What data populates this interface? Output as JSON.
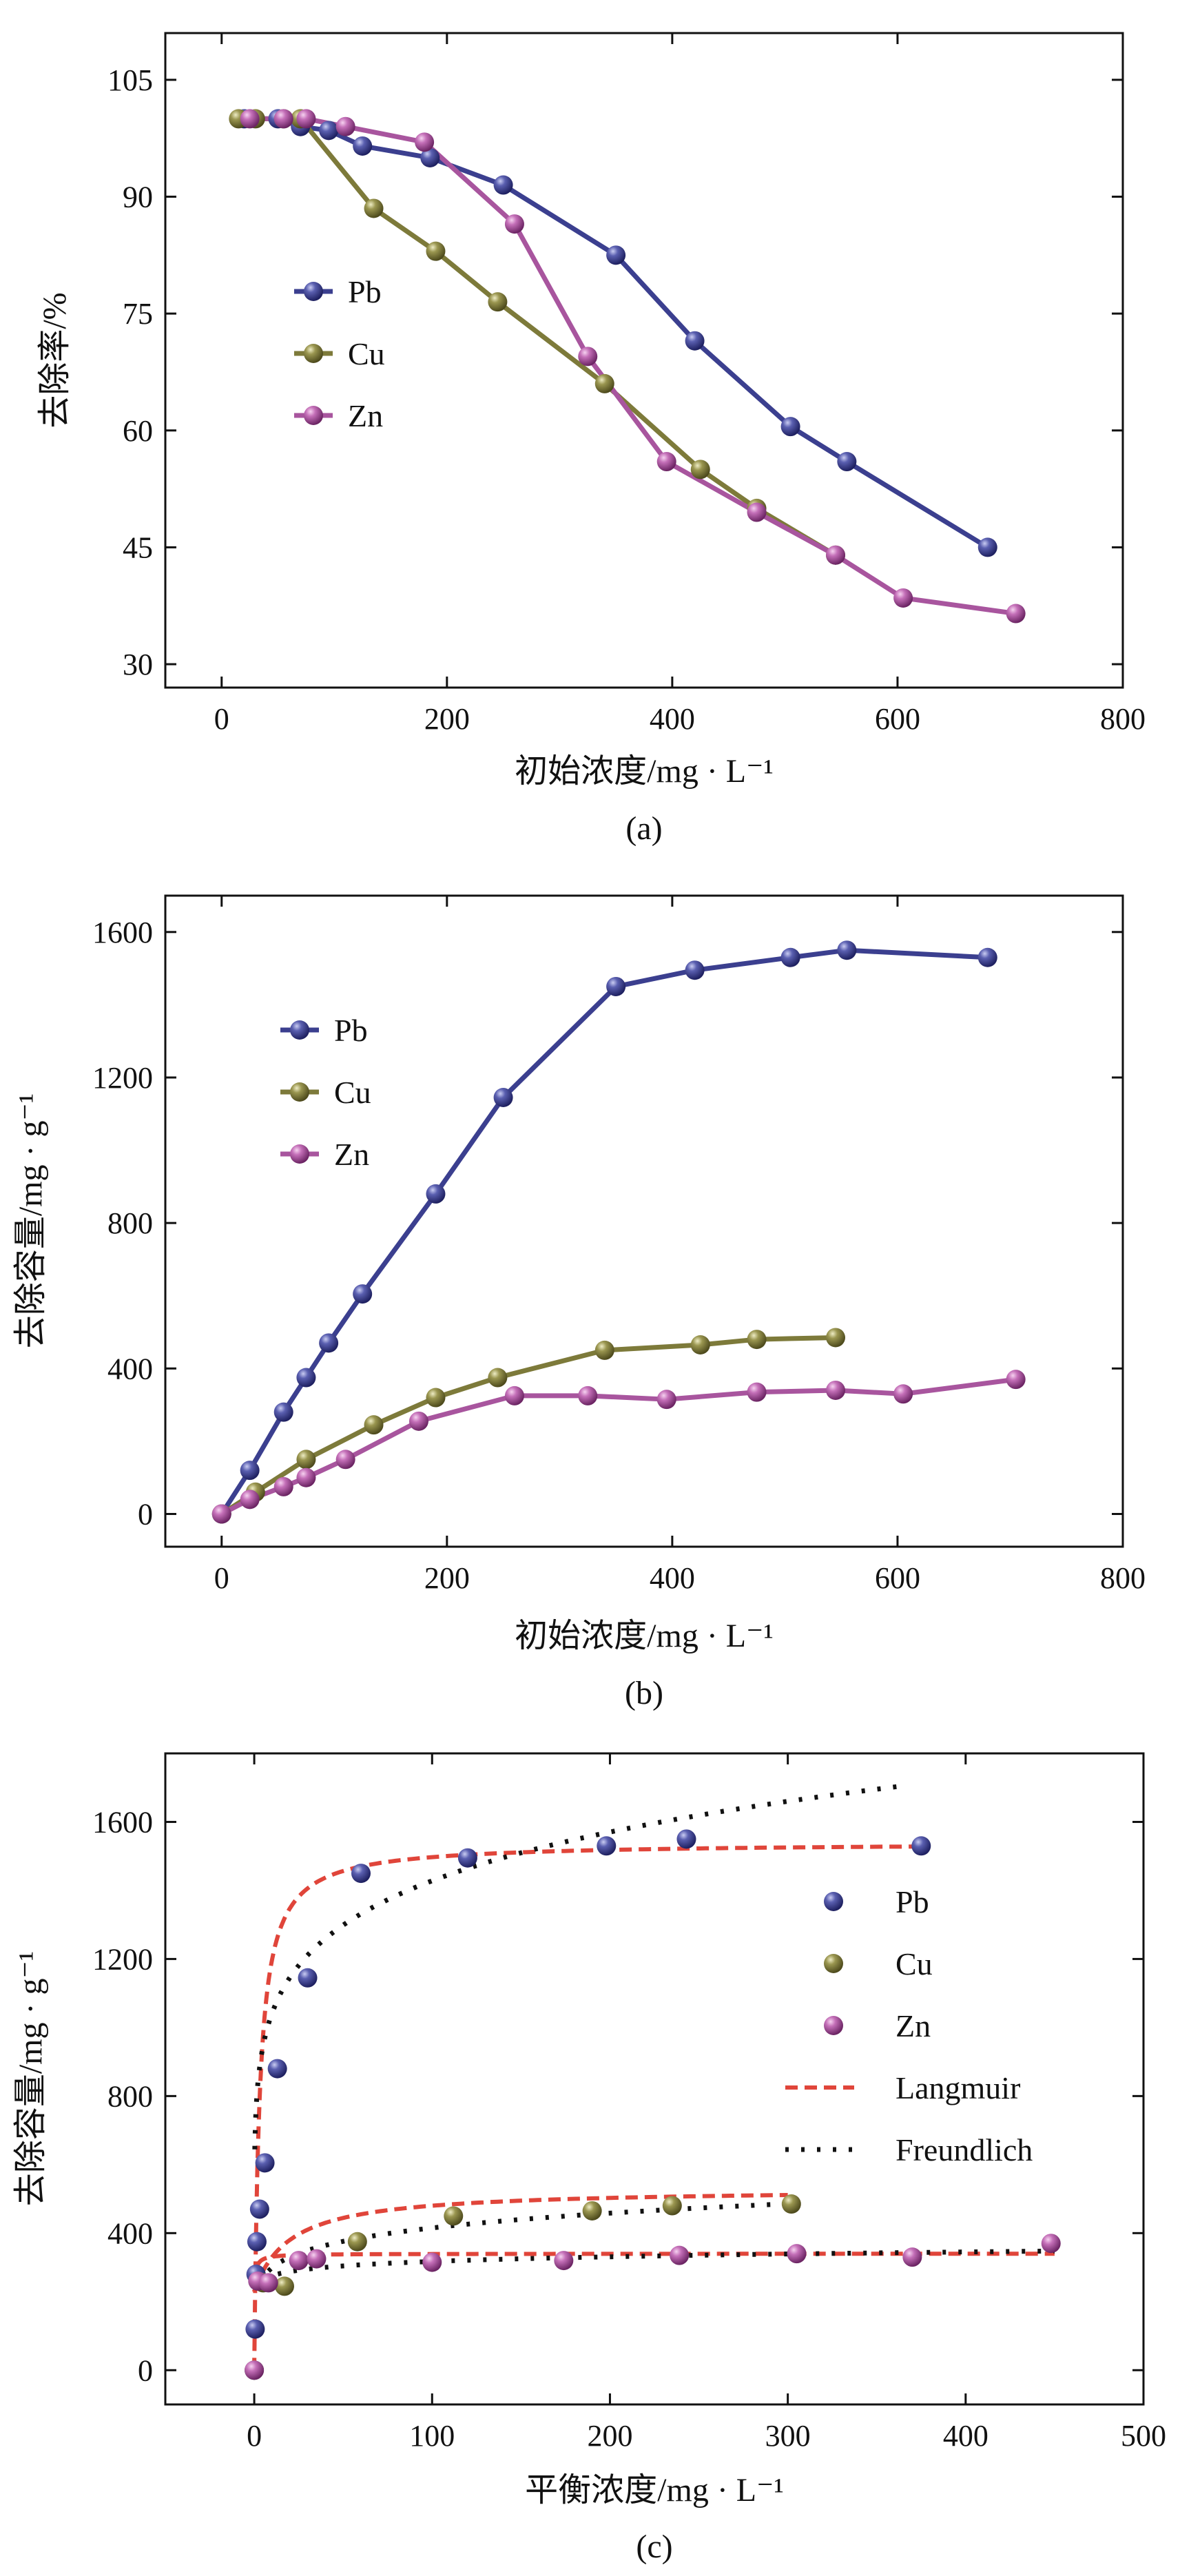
{
  "chart_data": [
    {
      "type": "line",
      "caption": "(a)",
      "xlabel": "初始浓度/mg · L⁻¹",
      "ylabel": "去除率/%",
      "xlim": [
        -50,
        800
      ],
      "ylim": [
        27,
        111
      ],
      "xticks": [
        0,
        200,
        400,
        600,
        800
      ],
      "yticks": [
        30,
        45,
        60,
        75,
        90,
        105
      ],
      "legend": {
        "position": "left",
        "entries": [
          "Pb",
          "Cu",
          "Zn"
        ]
      },
      "series": [
        {
          "name": "Pb",
          "color": "#3b3f8f",
          "x": [
            20,
            50,
            70,
            95,
            125,
            185,
            250,
            350,
            420,
            505,
            555,
            680
          ],
          "y": [
            100,
            100,
            99,
            98.5,
            96.5,
            95,
            91.5,
            82.5,
            71.5,
            60.5,
            56,
            45
          ]
        },
        {
          "name": "Cu",
          "color": "#7d7a3a",
          "x": [
            15,
            30,
            55,
            70,
            135,
            190,
            245,
            340,
            425,
            475,
            545
          ],
          "y": [
            100,
            100,
            100,
            100,
            88.5,
            83,
            76.5,
            66,
            55,
            50,
            44
          ]
        },
        {
          "name": "Zn",
          "color": "#a8559e",
          "x": [
            25,
            55,
            75,
            110,
            180,
            260,
            325,
            395,
            475,
            545,
            605,
            705
          ],
          "y": [
            100,
            100,
            100,
            99,
            97,
            86.5,
            69.5,
            56,
            49.5,
            44,
            38.5,
            36.5
          ]
        }
      ]
    },
    {
      "type": "line",
      "caption": "(b)",
      "xlabel": "初始浓度/mg · L⁻¹",
      "ylabel": "去除容量/mg · g⁻¹",
      "xlim": [
        -50,
        800
      ],
      "ylim": [
        -90,
        1700
      ],
      "xticks": [
        0,
        200,
        400,
        600,
        800
      ],
      "yticks": [
        0,
        400,
        800,
        1200,
        1600
      ],
      "legend": {
        "position": "upper-left",
        "entries": [
          "Pb",
          "Cu",
          "Zn"
        ]
      },
      "series": [
        {
          "name": "Pb",
          "color": "#3b3f8f",
          "x": [
            0,
            25,
            55,
            75,
            95,
            125,
            190,
            250,
            350,
            420,
            505,
            555,
            680
          ],
          "y": [
            0,
            120,
            280,
            375,
            470,
            605,
            880,
            1145,
            1450,
            1495,
            1530,
            1550,
            1530
          ]
        },
        {
          "name": "Cu",
          "color": "#7d7a3a",
          "x": [
            0,
            30,
            75,
            135,
            190,
            245,
            340,
            425,
            475,
            545
          ],
          "y": [
            0,
            60,
            150,
            245,
            320,
            375,
            450,
            465,
            480,
            485
          ]
        },
        {
          "name": "Zn",
          "color": "#a8559e",
          "x": [
            0,
            25,
            55,
            75,
            110,
            175,
            260,
            325,
            395,
            475,
            545,
            605,
            705
          ],
          "y": [
            0,
            40,
            75,
            100,
            150,
            255,
            325,
            325,
            315,
            335,
            340,
            330,
            370
          ]
        }
      ]
    },
    {
      "type": "scatter",
      "caption": "(c)",
      "xlabel": "平衡浓度/mg · L⁻¹",
      "ylabel": "去除容量/mg · g⁻¹",
      "xlim": [
        -50,
        500
      ],
      "ylim": [
        -100,
        1800
      ],
      "xticks": [
        0,
        100,
        200,
        300,
        400,
        500
      ],
      "yticks": [
        0,
        400,
        800,
        1200,
        1600
      ],
      "legend": {
        "position": "right",
        "entries": [
          "Pb",
          "Cu",
          "Zn",
          "Langmuir",
          "Freundlich"
        ]
      },
      "series": [
        {
          "name": "Pb",
          "color": "#3b3f8f",
          "x": [
            0,
            0.5,
            1,
            1.5,
            3,
            6,
            13,
            30,
            60,
            120,
            198,
            243,
            375
          ],
          "y": [
            0,
            120,
            280,
            375,
            470,
            605,
            880,
            1145,
            1450,
            1495,
            1530,
            1550,
            1530
          ]
        },
        {
          "name": "Cu",
          "color": "#7d7a3a",
          "x": [
            0,
            5,
            17,
            58,
            112,
            190,
            235,
            302
          ],
          "y": [
            0,
            255,
            245,
            375,
            450,
            465,
            480,
            485
          ]
        },
        {
          "name": "Zn",
          "color": "#a8559e",
          "x": [
            0,
            2,
            8,
            25,
            35,
            100,
            174,
            239,
            305,
            370,
            448
          ],
          "y": [
            0,
            260,
            255,
            320,
            325,
            315,
            320,
            335,
            340,
            330,
            370
          ]
        }
      ],
      "fits": [
        {
          "name": "Langmuir",
          "color": "#e0453a",
          "style": "dashed",
          "segments": [
            {
              "of": "Pb",
              "qmax": 1540,
              "K": 0.35,
              "xrange": [
                0,
                375
              ]
            },
            {
              "of": "Cu",
              "qmax": 530,
              "K": 0.05,
              "xrange": [
                0,
                300
              ],
              "offset": 230
            },
            {
              "of": "Zn",
              "qmax": 340,
              "K": 0.9,
              "xrange": [
                0,
                450
              ],
              "offset": 0
            }
          ]
        },
        {
          "name": "Freundlich",
          "color": "#111111",
          "style": "dotted",
          "segments": [
            {
              "of": "Pb",
              "Kf": 760,
              "n": 7.3,
              "xrange": [
                0.3,
                365
              ]
            },
            {
              "of": "Cu",
              "Kf": 215,
              "n": 7.0,
              "xrange": [
                3,
                300
              ]
            },
            {
              "of": "Zn",
              "Kf": 240,
              "n": 16.5,
              "xrange": [
                5,
                450
              ]
            }
          ]
        }
      ]
    }
  ]
}
